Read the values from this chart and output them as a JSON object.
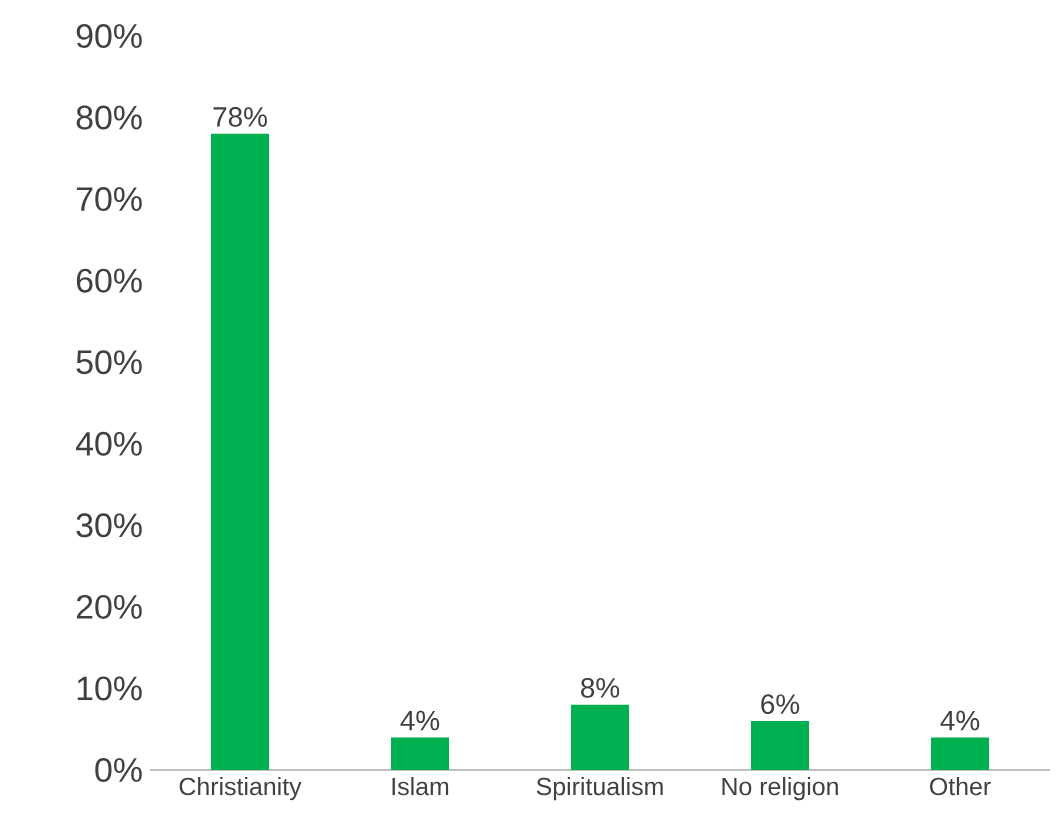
{
  "chart_data": {
    "type": "bar",
    "categories": [
      "Christianity",
      "Islam",
      "Spiritualism",
      "No religion",
      "Other"
    ],
    "values": [
      78,
      4,
      8,
      6,
      4
    ],
    "value_labels": [
      "78%",
      "4%",
      "8%",
      "6%",
      "4%"
    ],
    "color": "#00b050",
    "ylim": [
      0,
      90
    ],
    "yticks": [
      {
        "value": 0,
        "label": "0%"
      },
      {
        "value": 10,
        "label": "10%"
      },
      {
        "value": 20,
        "label": "20%"
      },
      {
        "value": 30,
        "label": "30%"
      },
      {
        "value": 40,
        "label": "40%"
      },
      {
        "value": 50,
        "label": "50%"
      },
      {
        "value": 60,
        "label": "60%"
      },
      {
        "value": 70,
        "label": "70%"
      },
      {
        "value": 80,
        "label": "80%"
      },
      {
        "value": 90,
        "label": "90%"
      }
    ]
  }
}
